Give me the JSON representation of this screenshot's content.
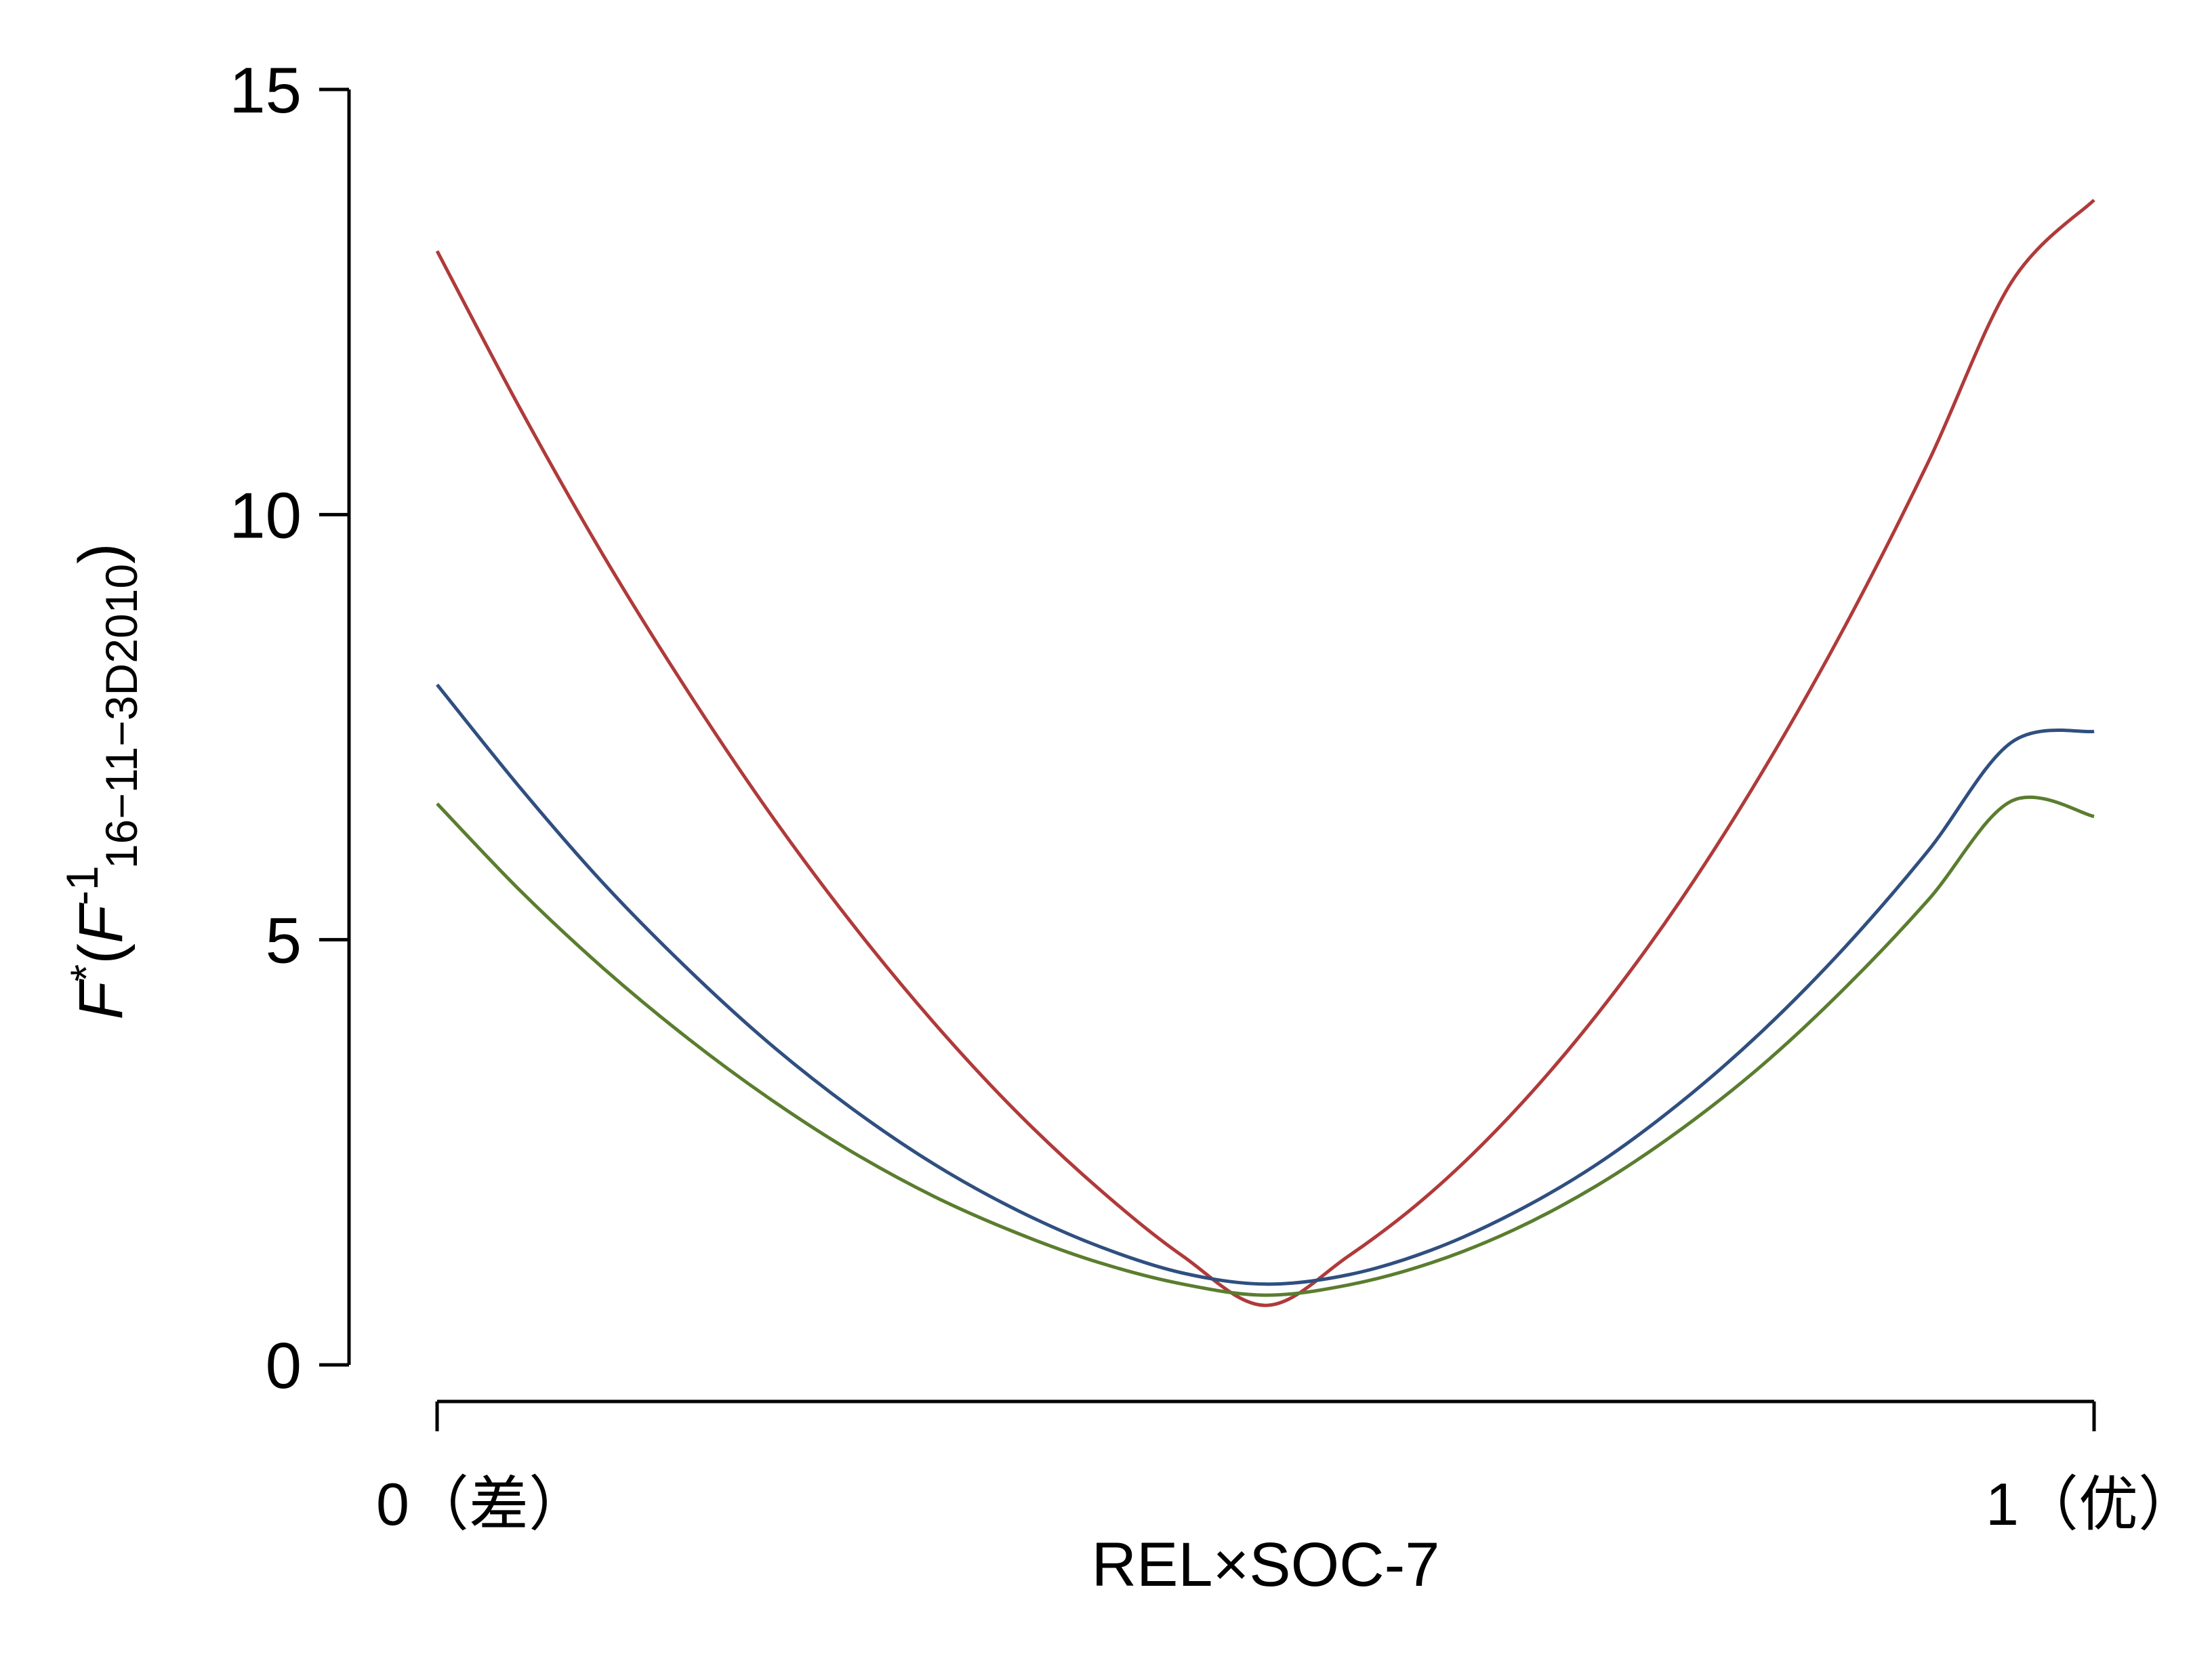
{
  "chart_data": {
    "type": "line",
    "xlabel": "REL×SOC-7",
    "ylabel": {
      "main": "F",
      "star": "*",
      "open": "(",
      "inner": "F",
      "sup": "-1",
      "sub": "16−11−3D2010",
      "close": ")"
    },
    "ylim": [
      0,
      15
    ],
    "yticks": [
      "0",
      "5",
      "10",
      "15"
    ],
    "xlim": [
      0,
      1
    ],
    "xticks": [
      {
        "value": 0,
        "label": "0（差）"
      },
      {
        "value": 1,
        "label": "1（优）"
      }
    ],
    "grid": false,
    "legend": null,
    "x": [
      0,
      0.05,
      0.1,
      0.15,
      0.2,
      0.25,
      0.3,
      0.35,
      0.4,
      0.45,
      0.5,
      0.55,
      0.6,
      0.65,
      0.7,
      0.75,
      0.8,
      0.85,
      0.9,
      0.95,
      1.0
    ],
    "series": [
      {
        "color": "#b03a3a",
        "values": [
          13.1,
          11.25,
          9.53,
          7.96,
          6.51,
          5.2,
          4.02,
          2.97,
          2.06,
          1.28,
          0.7,
          1.28,
          2.03,
          2.98,
          4.12,
          5.45,
          6.98,
          8.7,
          10.62,
          12.73,
          13.7
        ]
      },
      {
        "color": "#2f4f7f",
        "values": [
          8.0,
          6.79,
          5.67,
          4.68,
          3.79,
          3.02,
          2.36,
          1.82,
          1.39,
          1.08,
          0.95,
          1.06,
          1.35,
          1.79,
          2.36,
          3.08,
          3.93,
          4.92,
          6.05,
          7.32,
          7.45
        ]
      },
      {
        "color": "#5a7d2f",
        "values": [
          6.6,
          5.58,
          4.67,
          3.86,
          3.14,
          2.51,
          1.98,
          1.55,
          1.2,
          0.95,
          0.82,
          0.94,
          1.2,
          1.59,
          2.11,
          2.76,
          3.53,
          4.44,
          5.47,
          6.63,
          6.45
        ]
      }
    ]
  }
}
